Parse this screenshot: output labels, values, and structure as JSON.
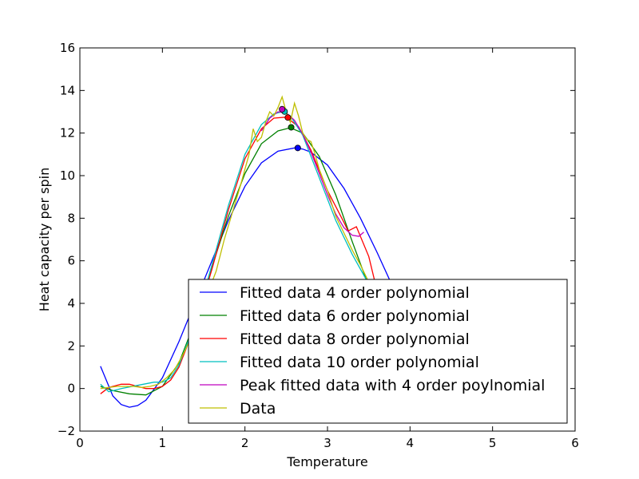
{
  "chart_data": {
    "type": "line",
    "title": "",
    "xlabel": "Temperature",
    "ylabel": "Heat capacity per spin",
    "xlim": [
      0,
      6
    ],
    "ylim": [
      -2,
      16
    ],
    "xticks": [
      "0",
      "1",
      "2",
      "3",
      "4",
      "5",
      "6"
    ],
    "yticks": [
      "−2",
      "0",
      "2",
      "4",
      "6",
      "8",
      "10",
      "12",
      "14",
      "16"
    ],
    "grid": false,
    "legend_position": "lower-right",
    "series": [
      {
        "name": "Fitted data 4 order polynomial",
        "color": "#0000ff",
        "x": [
          0.25,
          0.4,
          0.5,
          0.6,
          0.7,
          0.8,
          1.0,
          1.2,
          1.4,
          1.6,
          1.8,
          2.0,
          2.2,
          2.4,
          2.6,
          2.7,
          2.8,
          3.0,
          3.2,
          3.4,
          3.6,
          3.8,
          4.0,
          4.2
        ],
        "y": [
          1.05,
          -0.35,
          -0.75,
          -0.88,
          -0.8,
          -0.55,
          0.5,
          2.2,
          4.1,
          6.0,
          7.9,
          9.5,
          10.6,
          11.15,
          11.3,
          11.25,
          11.1,
          10.5,
          9.4,
          8.0,
          6.4,
          4.7,
          3.1,
          1.5
        ]
      },
      {
        "name": "Fitted data 6 order polynomial",
        "color": "#008000",
        "x": [
          0.25,
          0.4,
          0.6,
          0.8,
          1.0,
          1.2,
          1.4,
          1.6,
          1.8,
          2.0,
          2.2,
          2.4,
          2.55,
          2.7,
          2.9,
          3.1,
          3.3,
          3.5,
          3.7
        ],
        "y": [
          0.1,
          -0.1,
          -0.25,
          -0.3,
          0.1,
          1.2,
          3.2,
          5.7,
          8.1,
          10.1,
          11.5,
          12.1,
          12.25,
          12.0,
          10.9,
          9.1,
          6.9,
          4.8,
          2.9
        ]
      },
      {
        "name": "Fitted data 8 order polynomial",
        "color": "#ff0000",
        "x": [
          0.25,
          0.35,
          0.5,
          0.6,
          0.7,
          0.8,
          0.9,
          1.0,
          1.1,
          1.2,
          1.4,
          1.6,
          1.8,
          2.0,
          2.2,
          2.35,
          2.5,
          2.65,
          2.8,
          3.0,
          3.2,
          3.25,
          3.35,
          3.5,
          3.6
        ],
        "y": [
          -0.25,
          0.05,
          0.2,
          0.2,
          0.1,
          0.0,
          0.0,
          0.1,
          0.4,
          1.0,
          3.0,
          5.6,
          8.4,
          10.8,
          12.2,
          12.7,
          12.75,
          12.3,
          11.2,
          9.3,
          7.8,
          7.4,
          7.6,
          6.2,
          4.6
        ]
      },
      {
        "name": "Fitted data 10 order polynomial",
        "color": "#00bfbf",
        "x": [
          0.25,
          0.35,
          0.5,
          0.7,
          0.9,
          1.0,
          1.1,
          1.2,
          1.4,
          1.6,
          1.8,
          2.0,
          2.2,
          2.35,
          2.45,
          2.55,
          2.7,
          2.9,
          3.1,
          3.3,
          3.5,
          3.6
        ],
        "y": [
          0.2,
          -0.15,
          0.0,
          0.15,
          0.3,
          0.3,
          0.5,
          1.1,
          3.1,
          5.8,
          8.6,
          11.0,
          12.4,
          12.9,
          13.0,
          12.8,
          11.9,
          9.9,
          7.9,
          6.3,
          4.9,
          4.3
        ]
      },
      {
        "name": "Peak fitted data with 4 order poylnomial",
        "color": "#bf00bf",
        "x": [
          2.2,
          2.3,
          2.4,
          2.5,
          2.6,
          2.7,
          2.8,
          2.9,
          3.0,
          3.1,
          3.2,
          3.3,
          3.38,
          3.44
        ],
        "y": [
          12.1,
          12.7,
          13.0,
          12.95,
          12.6,
          11.95,
          11.1,
          10.1,
          9.1,
          8.2,
          7.55,
          7.2,
          7.15,
          7.35
        ]
      },
      {
        "name": "Data",
        "color": "#bfbf00",
        "x": [
          0.25,
          0.35,
          0.45,
          0.55,
          0.65,
          0.75,
          0.85,
          0.95,
          1.05,
          1.15,
          1.25,
          1.35,
          1.45,
          1.55,
          1.65,
          1.75,
          1.85,
          1.95,
          2.05,
          2.1,
          2.15,
          2.2,
          2.25,
          2.3,
          2.35,
          2.4,
          2.45,
          2.5,
          2.55,
          2.6,
          2.65,
          2.7,
          2.75,
          2.8,
          2.85,
          2.9,
          3.0,
          3.1,
          3.2,
          3.3,
          3.4,
          3.5,
          3.6
        ],
        "y": [
          0.0,
          0.05,
          0.1,
          0.1,
          0.1,
          0.05,
          0.1,
          0.2,
          0.5,
          0.9,
          1.6,
          2.4,
          3.4,
          4.5,
          5.5,
          7.0,
          8.3,
          9.6,
          11.0,
          12.2,
          11.6,
          11.8,
          12.5,
          13.0,
          12.8,
          13.2,
          13.7,
          13.0,
          12.5,
          13.4,
          12.8,
          12.0,
          11.7,
          11.6,
          11.0,
          10.3,
          9.3,
          8.1,
          7.3,
          6.5,
          5.8,
          5.0,
          4.4
        ]
      }
    ],
    "peak_points": [
      {
        "x": 2.64,
        "y": 11.3,
        "color": "#0000ff"
      },
      {
        "x": 2.56,
        "y": 12.27,
        "color": "#008000"
      },
      {
        "x": 2.52,
        "y": 12.73,
        "color": "#ff0000"
      },
      {
        "x": 2.48,
        "y": 13.01,
        "color": "#00bfbf"
      },
      {
        "x": 2.45,
        "y": 13.12,
        "color": "#bf00bf"
      }
    ]
  }
}
